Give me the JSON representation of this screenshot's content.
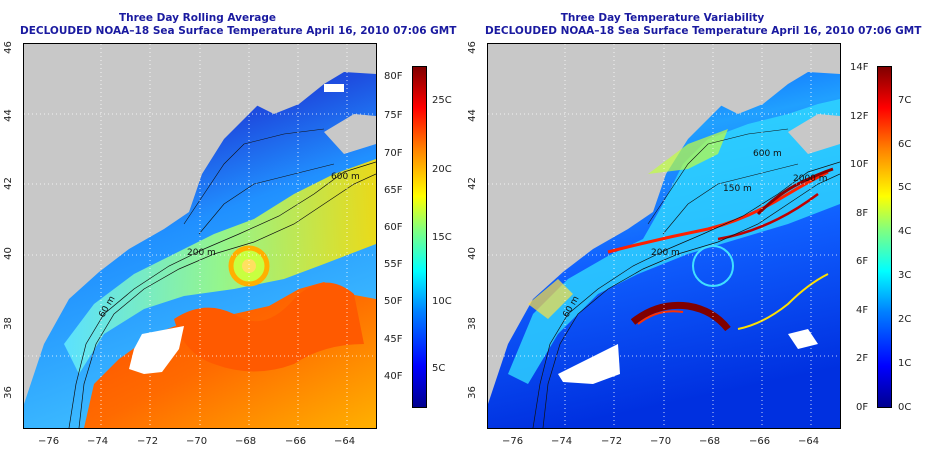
{
  "left_panel": {
    "title": "Three Day Rolling Average",
    "subtitle": "DECLOUDED NOAA–18 Sea Surface Temperature April 16, 2010 07:06 GMT",
    "x_ticks": [
      "−76",
      "−74",
      "−72",
      "−70",
      "−68",
      "−66",
      "−64"
    ],
    "y_ticks": [
      "36",
      "38",
      "40",
      "42",
      "44",
      "46"
    ],
    "contour_labels": [
      "200 m",
      "60 m",
      "600 m"
    ],
    "colorbar_f": [
      "80F",
      "75F",
      "70F",
      "65F",
      "60F",
      "55F",
      "50F",
      "45F",
      "40F"
    ],
    "colorbar_c": [
      "25C",
      "20C",
      "15C",
      "10C",
      "5C"
    ]
  },
  "right_panel": {
    "title": "Three Day Temperature Variability",
    "subtitle": "DECLOUDED NOAA–18 Sea Surface Temperature April 16, 2010 07:06 GMT",
    "x_ticks": [
      "−76",
      "−74",
      "−72",
      "−70",
      "−68",
      "−66",
      "−64"
    ],
    "y_ticks": [
      "36",
      "38",
      "40",
      "42",
      "44",
      "46"
    ],
    "contour_labels": [
      "200 m",
      "60 m",
      "600 m",
      "2000 m",
      "150 m"
    ],
    "colorbar_f": [
      "14F",
      "12F",
      "10F",
      "8F",
      "6F",
      "4F",
      "2F",
      "0F"
    ],
    "colorbar_c": [
      "7C",
      "6C",
      "5C",
      "4C",
      "3C",
      "2C",
      "1C",
      "0C"
    ]
  },
  "colors": {
    "title": "#1a1aa0",
    "land": "#c8c8c8",
    "cloud_mask": "#ffffff",
    "jet_dark_blue": "#00008f",
    "jet_blue": "#0050ff",
    "jet_cyan": "#00e0ff",
    "jet_yellow": "#ffff00",
    "jet_orange": "#ff8000",
    "jet_red": "#c00000"
  }
}
